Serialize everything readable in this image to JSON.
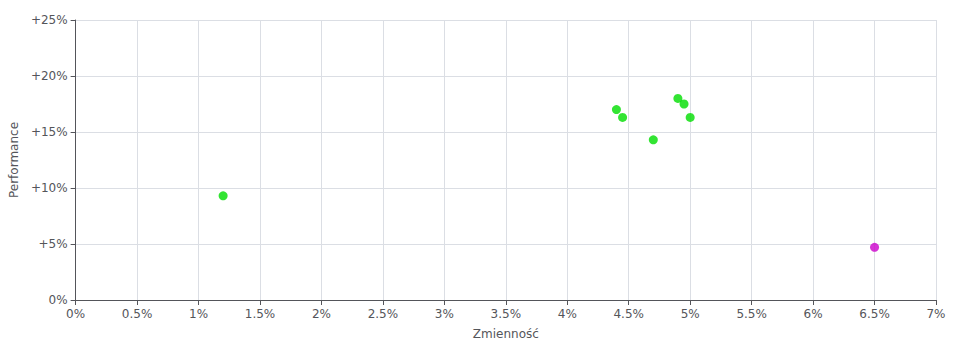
{
  "chart_data": {
    "type": "scatter",
    "xlabel": "Zmienność",
    "ylabel": "Performance",
    "xlim": [
      0.0,
      0.07
    ],
    "ylim": [
      0.0,
      0.25
    ],
    "xticks": [
      {
        "value": 0.0,
        "label": "0%"
      },
      {
        "value": 0.005,
        "label": "0.5%"
      },
      {
        "value": 0.01,
        "label": "1%"
      },
      {
        "value": 0.015,
        "label": "1.5%"
      },
      {
        "value": 0.02,
        "label": "2%"
      },
      {
        "value": 0.025,
        "label": "2.5%"
      },
      {
        "value": 0.03,
        "label": "3%"
      },
      {
        "value": 0.035,
        "label": "3.5%"
      },
      {
        "value": 0.04,
        "label": "4%"
      },
      {
        "value": 0.045,
        "label": "4.5%"
      },
      {
        "value": 0.05,
        "label": "5%"
      },
      {
        "value": 0.055,
        "label": "5.5%"
      },
      {
        "value": 0.06,
        "label": "6%"
      },
      {
        "value": 0.065,
        "label": "6.5%"
      },
      {
        "value": 0.07,
        "label": "7%"
      }
    ],
    "yticks": [
      {
        "value": 0.0,
        "label": "0%"
      },
      {
        "value": 0.05,
        "label": "+5%"
      },
      {
        "value": 0.1,
        "label": "+10%"
      },
      {
        "value": 0.15,
        "label": "+15%"
      },
      {
        "value": 0.2,
        "label": "+20%"
      },
      {
        "value": 0.25,
        "label": "+25%"
      }
    ],
    "grid": true,
    "series": [
      {
        "color": "#00dd00",
        "x": [
          0.012,
          0.044,
          0.0445,
          0.047,
          0.049,
          0.0495,
          0.05
        ],
        "values": [
          0.093,
          0.17,
          0.163,
          0.143,
          0.18,
          0.175,
          0.163
        ]
      },
      {
        "color": "#cc00cc",
        "x": [
          0.065
        ],
        "values": [
          0.047
        ]
      }
    ]
  }
}
